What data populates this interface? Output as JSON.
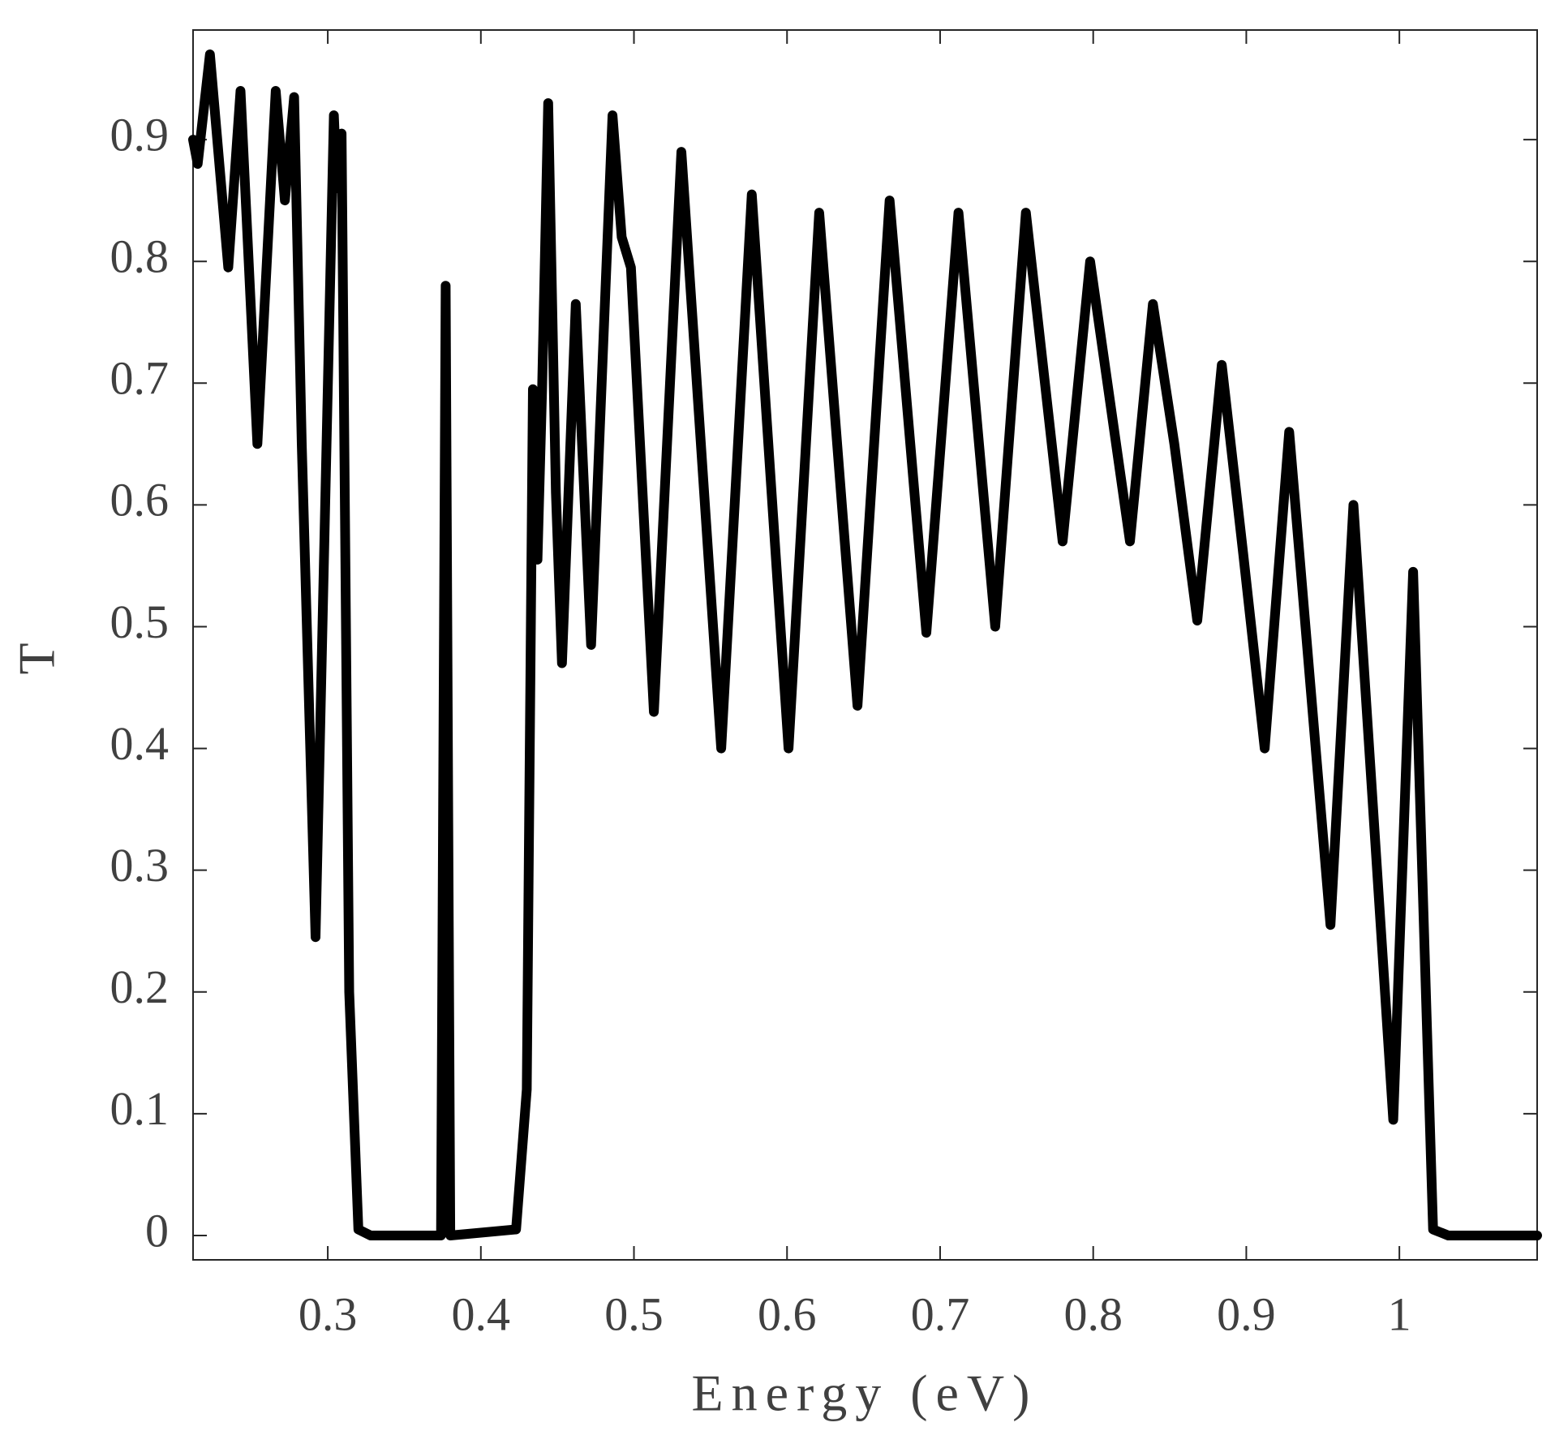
{
  "chart_data": {
    "type": "line",
    "x_label": "Energy (eV)",
    "y_label": "T",
    "x": [
      0.212,
      0.215,
      0.223,
      0.235,
      0.243,
      0.254,
      0.266,
      0.272,
      0.278,
      0.283,
      0.292,
      0.304,
      0.306,
      0.309,
      0.314,
      0.32,
      0.328,
      0.374,
      0.377,
      0.38,
      0.423,
      0.43,
      0.434,
      0.437,
      0.44,
      0.444,
      0.449,
      0.453,
      0.462,
      0.472,
      0.486,
      0.492,
      0.498,
      0.513,
      0.531,
      0.557,
      0.577,
      0.601,
      0.621,
      0.646,
      0.667,
      0.691,
      0.712,
      0.736,
      0.756,
      0.78,
      0.798,
      0.824,
      0.839,
      0.853,
      0.868,
      0.884,
      0.898,
      0.912,
      0.928,
      0.955,
      0.97,
      0.996,
      1.009,
      1.022,
      1.032,
      1.09
    ],
    "series": [
      {
        "name": "T",
        "color": "#000000",
        "values": [
          0.9,
          0.88,
          0.97,
          0.795,
          0.94,
          0.65,
          0.94,
          0.85,
          0.935,
          0.65,
          0.245,
          0.92,
          0.86,
          0.905,
          0.2,
          0.005,
          0,
          0,
          0.78,
          0,
          0.005,
          0.12,
          0.695,
          0.555,
          0.695,
          0.93,
          0.61,
          0.47,
          0.765,
          0.485,
          0.92,
          0.82,
          0.795,
          0.43,
          0.89,
          0.4,
          0.855,
          0.4,
          0.84,
          0.435,
          0.85,
          0.495,
          0.84,
          0.5,
          0.84,
          0.57,
          0.8,
          0.57,
          0.765,
          0.65,
          0.505,
          0.715,
          0.56,
          0.4,
          0.66,
          0.255,
          0.6,
          0.095,
          0.545,
          0.005,
          0,
          0
        ]
      }
    ],
    "xlim": [
      0.212,
      1.09
    ],
    "ylim": [
      -0.02,
      0.99
    ],
    "xticks": [
      0.3,
      0.4,
      0.5,
      0.6,
      0.7,
      0.8,
      0.9,
      1
    ],
    "yticks": [
      0,
      0.1,
      0.2,
      0.3,
      0.4,
      0.5,
      0.6,
      0.7,
      0.8,
      0.9
    ]
  }
}
